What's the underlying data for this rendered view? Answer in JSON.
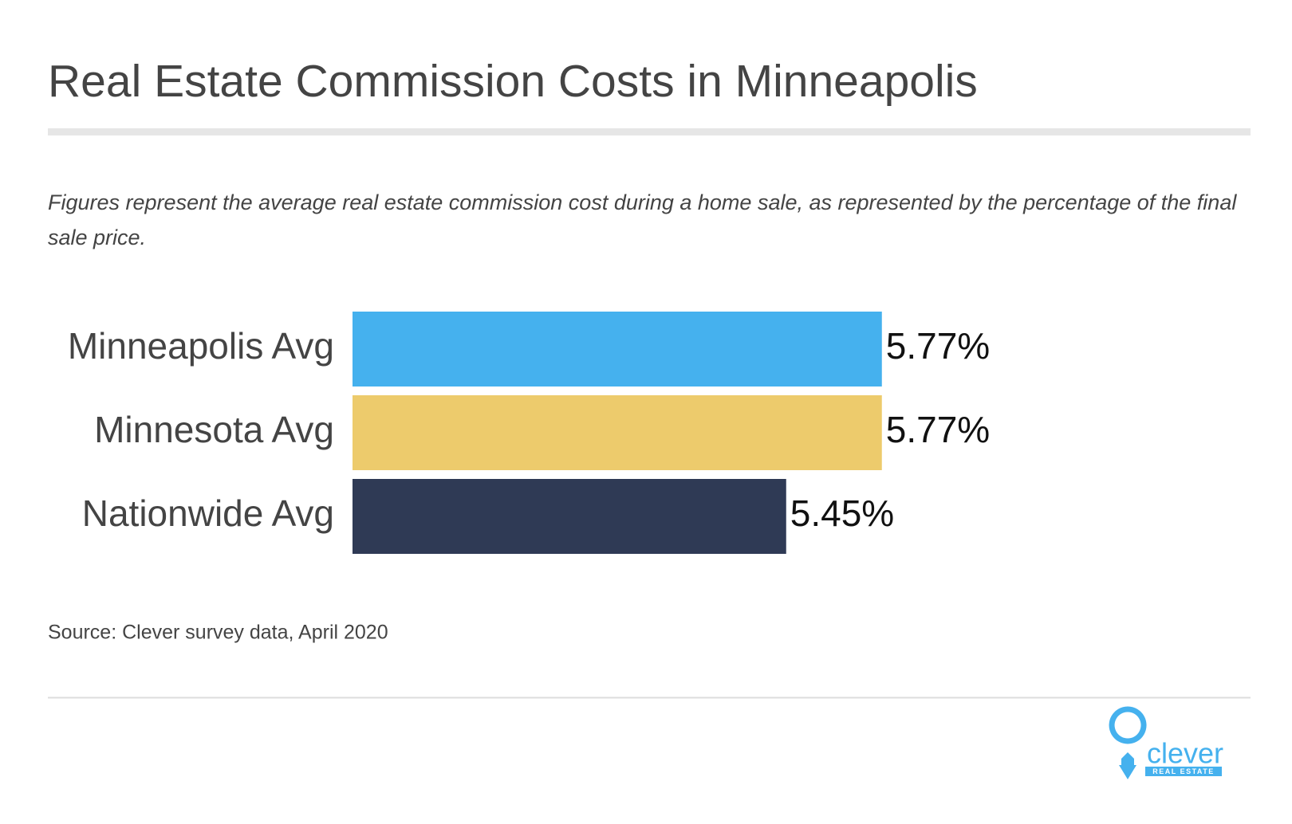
{
  "chart_data": {
    "type": "bar",
    "orientation": "horizontal",
    "title": "Real Estate Commission Costs in Minneapolis",
    "subtitle": "Figures represent the average real estate commission cost during a home sale, as represented by the percentage of the final sale price.",
    "categories": [
      "Minneapolis Avg",
      "Minnesota Avg",
      "Nationwide Avg"
    ],
    "values": [
      5.77,
      5.77,
      5.45
    ],
    "value_labels": [
      "5.77%",
      "5.77%",
      "5.45%"
    ],
    "colors": [
      "#45b1ee",
      "#edcb6c",
      "#2f3a55"
    ],
    "xlim": [
      4,
      7
    ],
    "source": "Source: Clever survey data, April 2020"
  },
  "brand": {
    "name": "clever",
    "tagline": "REAL ESTATE"
  }
}
